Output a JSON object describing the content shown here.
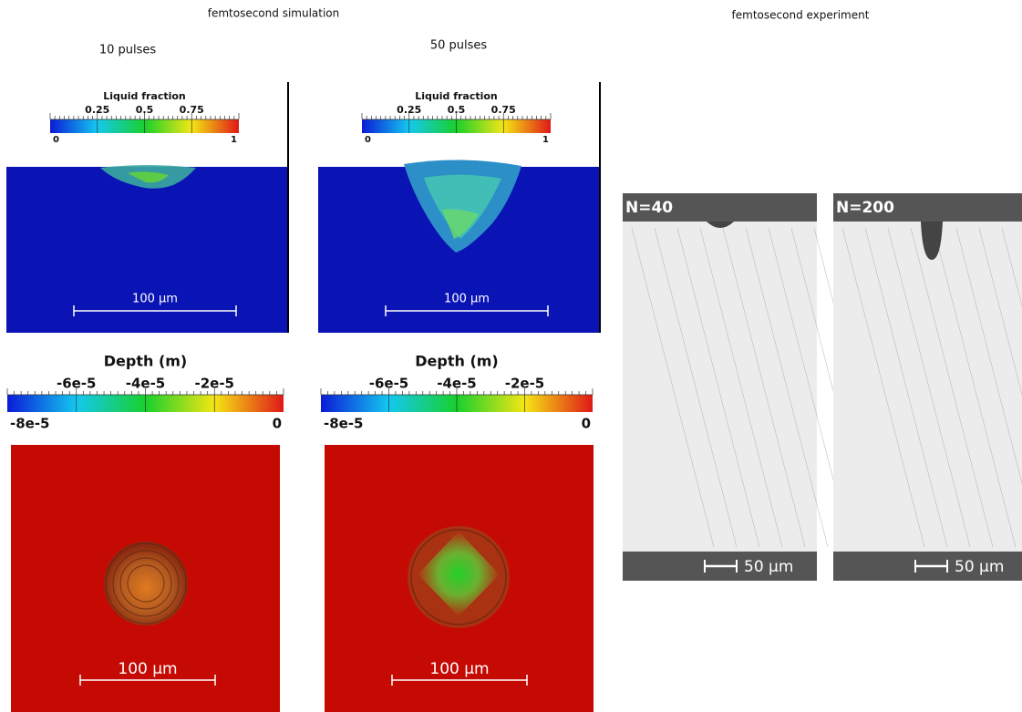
{
  "header": {
    "left_title": "femtosecond simulation",
    "right_title": "femtosecond experiment"
  },
  "simulation": {
    "columns": [
      {
        "label": "10 pulses",
        "liquid_colorbar": {
          "title": "Liquid fraction",
          "ticks": [
            "0.25",
            "0.5",
            "0.75"
          ],
          "min": "0",
          "max": "1"
        },
        "side_scale": "100 µm",
        "depth_colorbar": {
          "title": "Depth (m)",
          "ticks": [
            "-6e-5",
            "-4e-5",
            "-2e-5"
          ],
          "min": "-8e-5",
          "max": "0"
        },
        "top_scale": "100 µm"
      },
      {
        "label": "50 pulses",
        "liquid_colorbar": {
          "title": "Liquid fraction",
          "ticks": [
            "0.25",
            "0.5",
            "0.75"
          ],
          "min": "0",
          "max": "1"
        },
        "side_scale": "100 µm",
        "depth_colorbar": {
          "title": "Depth (m)",
          "ticks": [
            "-6e-5",
            "-4e-5",
            "-2e-5"
          ],
          "min": "-8e-5",
          "max": "0"
        },
        "top_scale": "100 µm"
      }
    ]
  },
  "experiment": {
    "panels": [
      {
        "label": "N=40",
        "scale": "50 µm"
      },
      {
        "label": "N=200",
        "scale": "50 µm"
      }
    ]
  }
}
